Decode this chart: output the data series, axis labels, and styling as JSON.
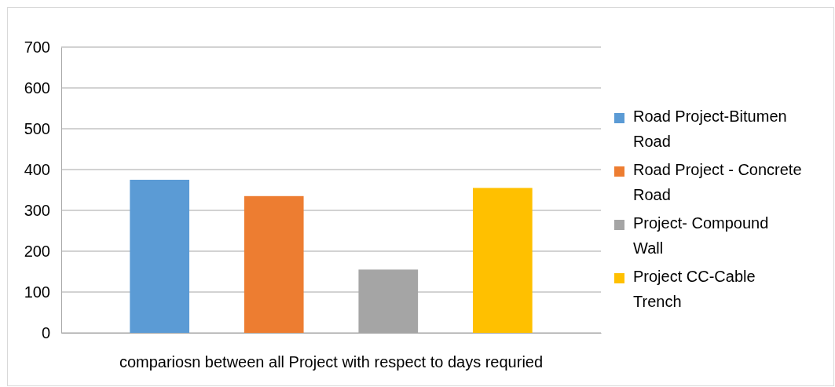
{
  "chart_data": {
    "type": "bar",
    "xlabel": "compariosn between all Project with respect to days requried",
    "categories": [
      null
    ],
    "series": [
      {
        "name": "Road Project-Bitumen Road",
        "color": "#5b9bd5",
        "values": [
          375
        ]
      },
      {
        "name": "Road Project - Concrete Road",
        "color": "#ed7d31",
        "values": [
          335
        ]
      },
      {
        "name": "Project- Compound Wall",
        "color": "#a5a5a5",
        "values": [
          155
        ]
      },
      {
        "name": "Project CC-Cable Trench",
        "color": "#ffc000",
        "values": [
          355
        ]
      }
    ],
    "ylim": [
      0,
      700
    ],
    "yticks": [
      0,
      100,
      200,
      300,
      400,
      500,
      600,
      700
    ],
    "grid": "y",
    "legend": "right"
  }
}
